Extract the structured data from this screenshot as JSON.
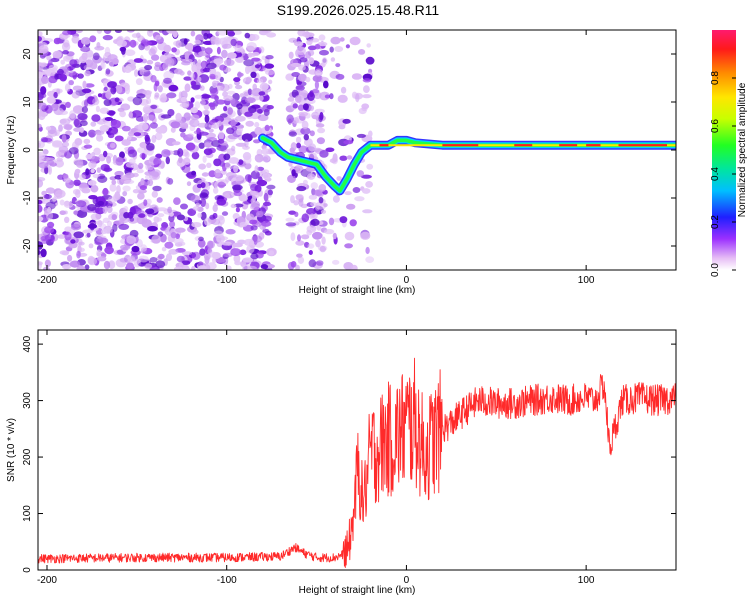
{
  "title": "S199.2026.025.15.48.R11",
  "chart_data": [
    {
      "type": "heatmap",
      "name": "spectrogram",
      "xlabel": "Height of straight line (km)",
      "ylabel": "Frequency (Hz)",
      "xlim": [
        -205,
        150
      ],
      "ylim": [
        -25,
        25
      ],
      "xticks": [
        -200,
        -100,
        0,
        100
      ],
      "yticks": [
        -20,
        -10,
        0,
        10,
        20
      ],
      "ridge": [
        {
          "x": -80,
          "y": 2.5
        },
        {
          "x": -75,
          "y": 1.5
        },
        {
          "x": -70,
          "y": -0.5
        },
        {
          "x": -66,
          "y": -1.5
        },
        {
          "x": -50,
          "y": -3
        },
        {
          "x": -45,
          "y": -5.5
        },
        {
          "x": -40,
          "y": -7.5
        },
        {
          "x": -37,
          "y": -8.5
        },
        {
          "x": -33,
          "y": -6
        },
        {
          "x": -29,
          "y": -3
        },
        {
          "x": -25,
          "y": -0.5
        },
        {
          "x": -20,
          "y": 1
        },
        {
          "x": -10,
          "y": 1
        },
        {
          "x": -5,
          "y": 2
        },
        {
          "x": 0,
          "y": 2
        },
        {
          "x": 5,
          "y": 1.5
        },
        {
          "x": 20,
          "y": 1
        },
        {
          "x": 60,
          "y": 1
        },
        {
          "x": 100,
          "y": 1
        },
        {
          "x": 110,
          "y": 1
        },
        {
          "x": 150,
          "y": 1
        }
      ]
    },
    {
      "type": "colorbar",
      "name": "amplitude-colorbar",
      "label": "Normalized spectral amplitude",
      "range": [
        0.0,
        1.0
      ],
      "ticks": [
        "0.0",
        "0.2",
        "0.4",
        "0.6",
        "0.8"
      ],
      "tick_values": [
        0.0,
        0.2,
        0.4,
        0.6,
        0.8
      ]
    },
    {
      "type": "line",
      "name": "snr",
      "xlabel": "Height of straight line (km)",
      "ylabel": "SNR (10 * v/v)",
      "xlim": [
        -205,
        150
      ],
      "ylim": [
        0,
        425
      ],
      "xticks": [
        -200,
        -100,
        0,
        100
      ],
      "yticks": [
        0,
        100,
        200,
        300,
        400
      ],
      "color": "#ff2a2a",
      "series": [
        {
          "name": "SNR",
          "x": [
            -205,
            -150,
            -100,
            -70,
            -62,
            -57,
            -50,
            -40,
            -33,
            -30,
            -27,
            -24,
            -22,
            -20,
            -16,
            -12,
            -8,
            0,
            5,
            10,
            15,
            20,
            25,
            30,
            40,
            50,
            60,
            70,
            80,
            90,
            100,
            105,
            110,
            113,
            120,
            130,
            140,
            150
          ],
          "y": [
            20,
            22,
            22,
            24,
            40,
            30,
            22,
            22,
            30,
            80,
            180,
            120,
            160,
            210,
            210,
            230,
            230,
            255,
            260,
            205,
            230,
            250,
            260,
            275,
            300,
            295,
            295,
            300,
            305,
            300,
            305,
            300,
            330,
            215,
            300,
            305,
            300,
            305
          ]
        }
      ]
    }
  ]
}
